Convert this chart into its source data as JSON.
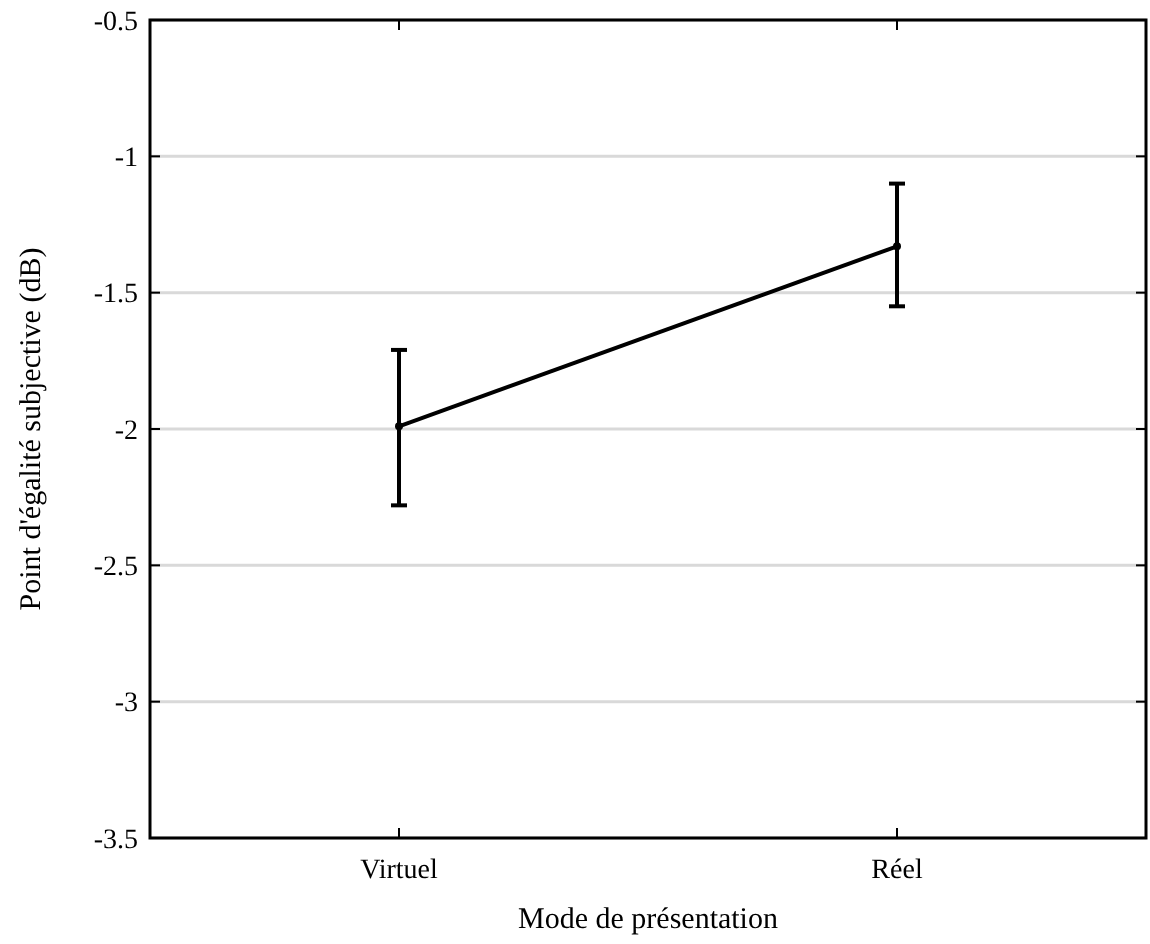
{
  "chart_data": {
    "type": "line",
    "xlabel": "Mode de présentation",
    "ylabel": "Point d'égalité subjective (dB)",
    "categories": [
      "Virtuel",
      "Réel"
    ],
    "series": [
      {
        "color": "#000000",
        "values": [
          -1.99,
          -1.33
        ],
        "errors": [
          [
            -2.28,
            -1.71
          ],
          [
            -1.55,
            -1.1
          ]
        ]
      }
    ],
    "ylim": [
      -3.5,
      -0.5
    ],
    "yticks": [
      -3.5,
      -3,
      -2.5,
      -2,
      -1.5,
      -1,
      -0.5
    ],
    "grid": "y",
    "marker": "circle",
    "line_style": "solid"
  }
}
